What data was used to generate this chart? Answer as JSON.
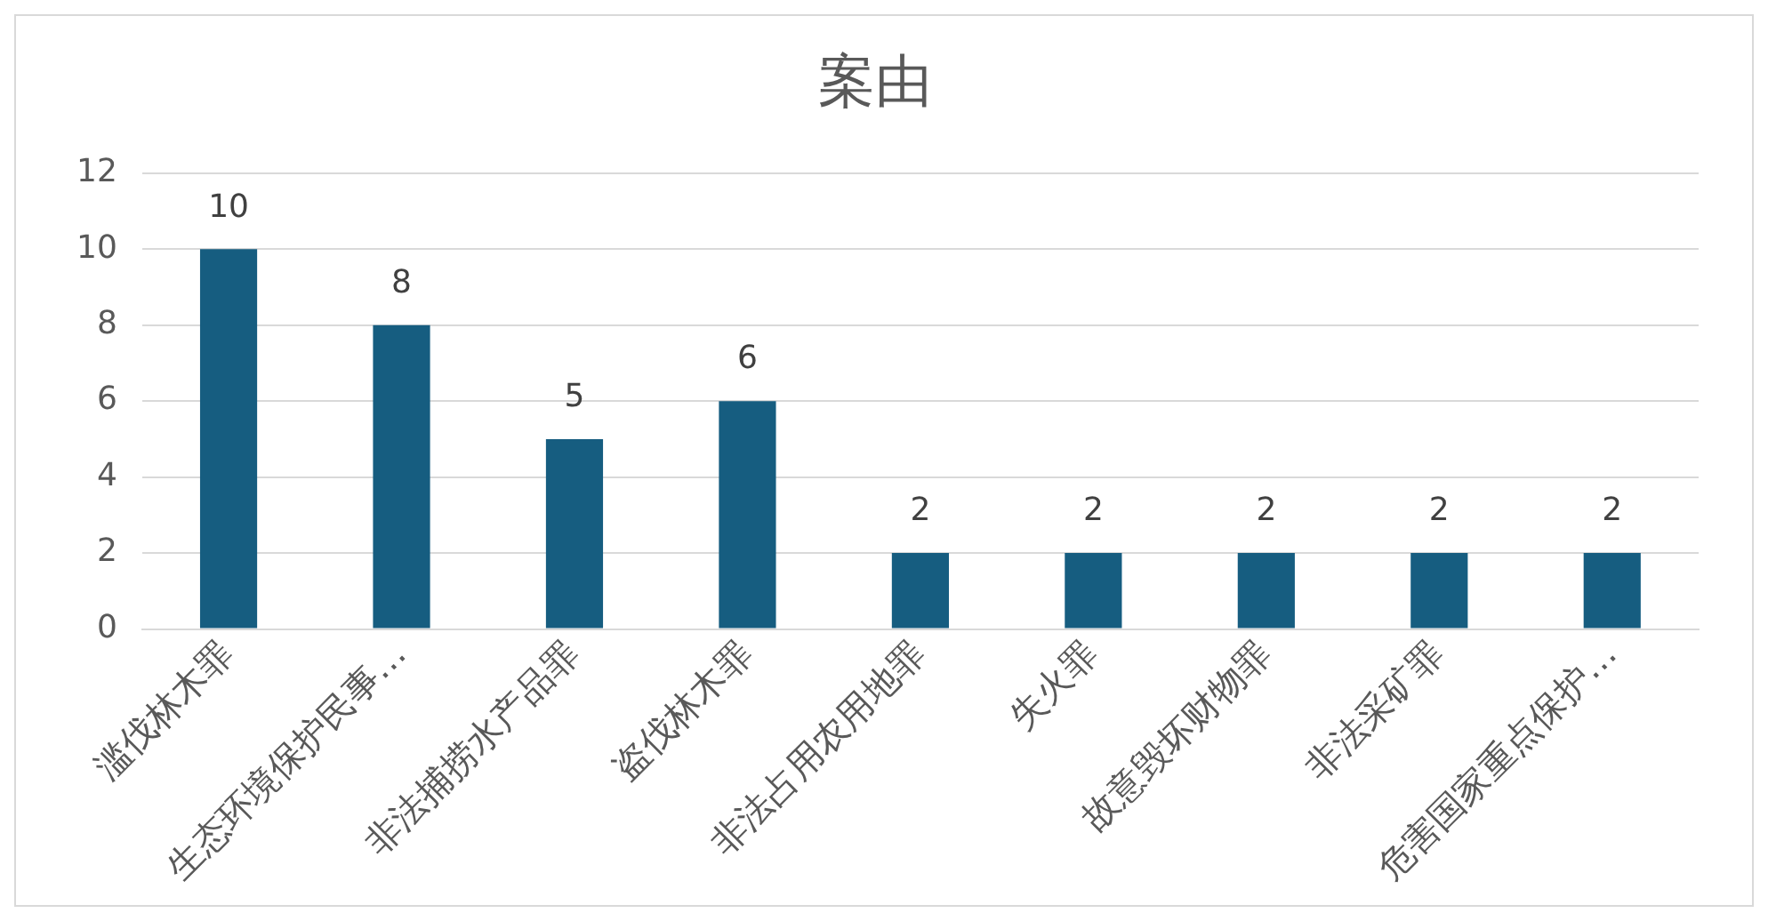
{
  "chart_data": {
    "type": "bar",
    "title": "案由",
    "categories": [
      "滥伐林木罪",
      "生态环境保护民事…",
      "非法捕捞水产品罪",
      "盗伐林木罪",
      "非法占用农用地罪",
      "失火罪",
      "故意毁坏财物罪",
      "非法采矿罪",
      "危害国家重点保护…"
    ],
    "values": [
      10,
      8,
      5,
      6,
      2,
      2,
      2,
      2,
      2
    ],
    "color": "#165d80",
    "ylim": [
      0,
      12
    ],
    "yticks": [
      0,
      2,
      4,
      6,
      8,
      10,
      12
    ],
    "grid": "y",
    "data_labels": true
  }
}
